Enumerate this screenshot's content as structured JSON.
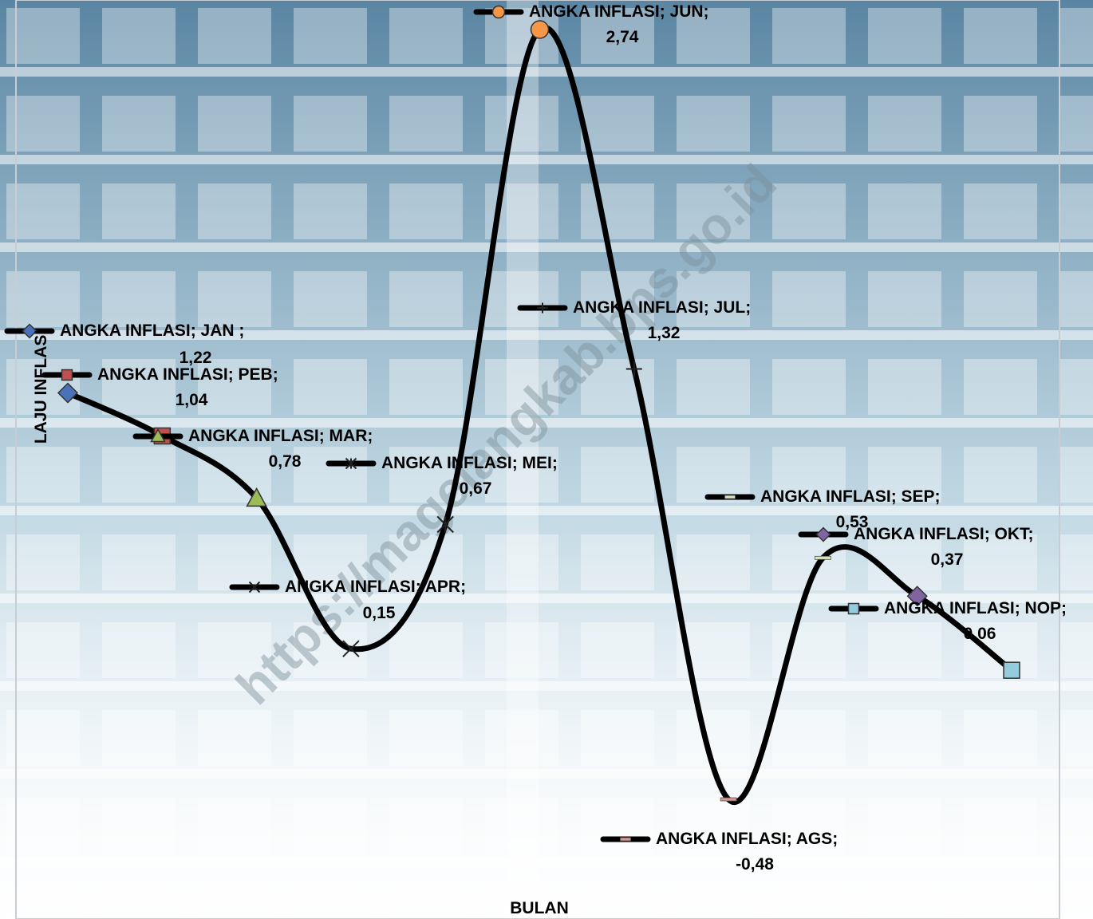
{
  "watermark": "https://magelangkab.bps.go.id",
  "colors": {
    "line": "#000000",
    "sky_top": "#5a86a3",
    "sky_mid": "#b9d3e0",
    "floor": "#f3f7f9"
  },
  "chart_data": {
    "type": "line",
    "title": "",
    "xlabel": "BULAN",
    "ylabel": "LAJU INFLASI",
    "smooth": true,
    "legend_placement": "inline at each point",
    "grid": false,
    "series": [
      {
        "name": "ANGKA INFLASI",
        "points": [
          {
            "category": "JAN ",
            "value": 1.22,
            "label": "1,22",
            "marker": "diamond",
            "color": "#4a72b8"
          },
          {
            "category": "PEB",
            "value": 1.04,
            "label": "1,04",
            "marker": "square",
            "color": "#c0504d"
          },
          {
            "category": "MAR",
            "value": 0.78,
            "label": "0,78",
            "marker": "triangle",
            "color": "#9bbb59"
          },
          {
            "category": "APR",
            "value": 0.15,
            "label": "0,15",
            "marker": "x",
            "color": "#222222"
          },
          {
            "category": "MEI",
            "value": 0.67,
            "label": "0,67",
            "marker": "star",
            "color": "#222222"
          },
          {
            "category": "JUN",
            "value": 2.74,
            "label": "2,74",
            "marker": "circle",
            "color": "#f79646"
          },
          {
            "category": "JUL",
            "value": 1.32,
            "label": "1,32",
            "marker": "plus",
            "color": "#222222"
          },
          {
            "category": "AGS",
            "value": -0.48,
            "label": "-0,48",
            "marker": "dash",
            "color": "#d99694"
          },
          {
            "category": "SEP",
            "value": 0.53,
            "label": "0,53",
            "marker": "dash",
            "color": "#d7e4bd"
          },
          {
            "category": "OKT",
            "value": 0.37,
            "label": "0,37",
            "marker": "diamond",
            "color": "#8064a2"
          },
          {
            "category": "NOP",
            "value": 0.06,
            "label": "0,06",
            "marker": "square",
            "color": "#93cddd"
          }
        ]
      }
    ]
  }
}
